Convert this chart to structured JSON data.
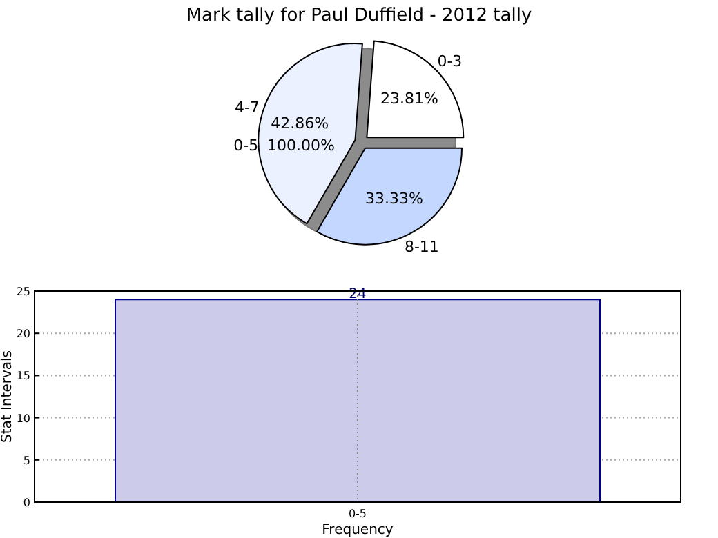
{
  "chart_data": [
    {
      "type": "pie",
      "title": "Mark tally for Paul Duffield - 2012 tally",
      "categories": [
        "0-3",
        "4-7",
        "8-11"
      ],
      "values": [
        23.81,
        42.86,
        33.33
      ],
      "colors": [
        "#ffffff",
        "#ebf1ff",
        "#c4d8ff"
      ],
      "value_labels": [
        "23.81%",
        "42.86%",
        "33.33%"
      ]
    },
    {
      "type": "pie",
      "categories": [
        "0-5"
      ],
      "values": [
        100
      ],
      "colors": [
        "#8c8c8c"
      ],
      "value_labels": [
        "100.00%"
      ]
    },
    {
      "type": "bar",
      "categories": [
        "0-5"
      ],
      "values": [
        24
      ],
      "color": "#ccccea",
      "ylim": [
        0,
        25
      ],
      "yticks": [
        0,
        5,
        10,
        15,
        20,
        25
      ],
      "xlabel": "Frequency",
      "ylabel": "Stat Intervals",
      "grid": true,
      "data_labels": true
    }
  ]
}
